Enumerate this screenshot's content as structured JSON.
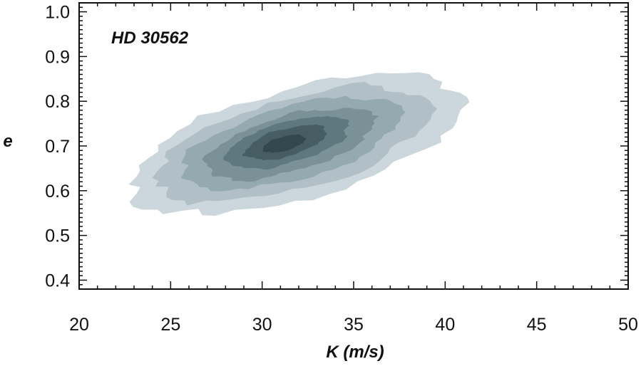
{
  "chart_data": {
    "type": "contour",
    "annotation": "HD 30562",
    "xlabel": "K (m/s)",
    "ylabel": "e",
    "xlim": [
      20,
      50
    ],
    "ylim": [
      0.38,
      1.02
    ],
    "xticks": [
      "20",
      "25",
      "30",
      "35",
      "40",
      "45",
      "50"
    ],
    "yticks": [
      "0.4",
      "0.5",
      "0.6",
      "0.7",
      "0.8",
      "0.9",
      "1.0"
    ],
    "grid": false,
    "legend": "none",
    "distribution": {
      "peak_K": 31.5,
      "peak_e": 0.705,
      "extent_K": [
        22,
        43
      ],
      "extent_e": [
        0.53,
        0.86
      ]
    },
    "levels": [
      {
        "level": 1,
        "color": "#cbd7dc"
      },
      {
        "level": 2,
        "color": "#b0c0c6"
      },
      {
        "level": 3,
        "color": "#95a9b0"
      },
      {
        "level": 4,
        "color": "#7a9198"
      },
      {
        "level": 5,
        "color": "#5f777e"
      },
      {
        "level": 6,
        "color": "#465d63"
      },
      {
        "level": 7,
        "color": "#33484c"
      }
    ]
  }
}
